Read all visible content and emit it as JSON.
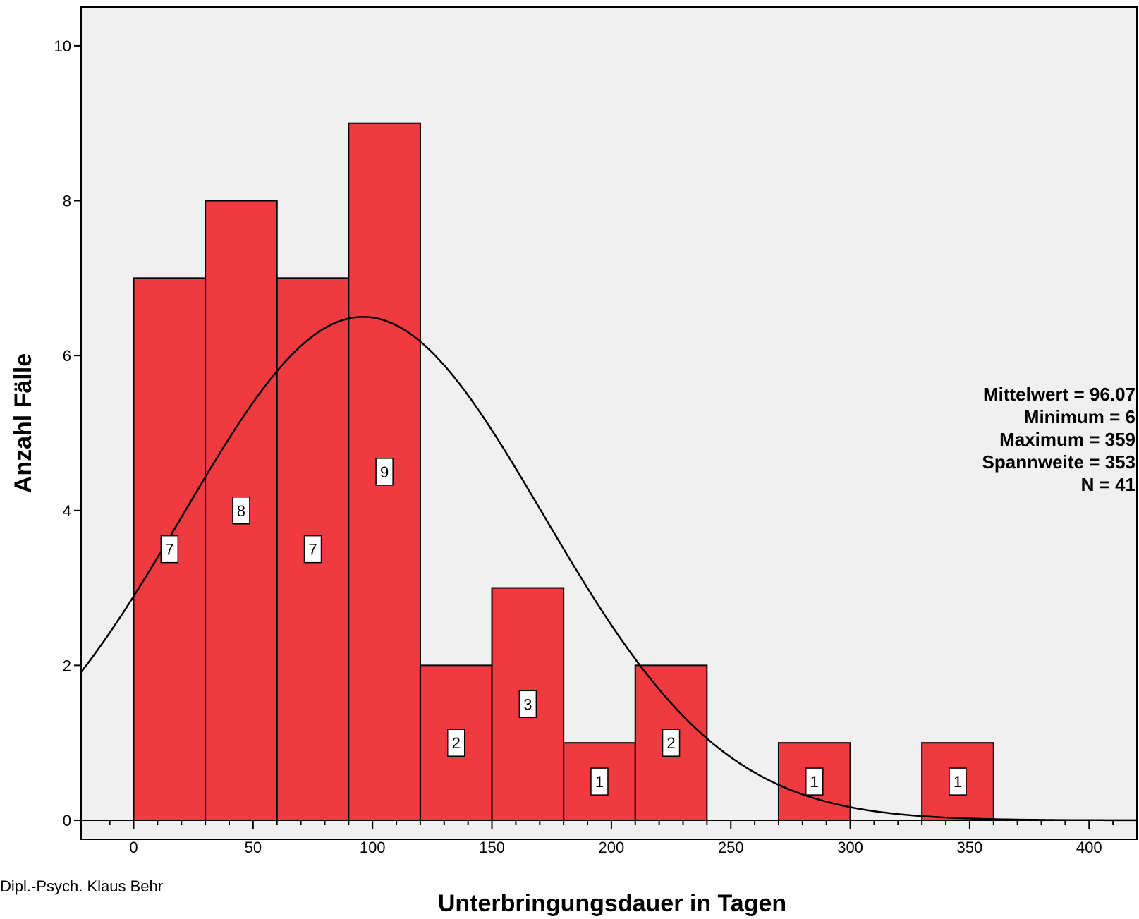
{
  "chart_data": {
    "type": "bar",
    "title": "",
    "xlabel": "Unterbringungsdauer in Tagen",
    "ylabel": "Anzahl Fälle",
    "xlim": [
      -22,
      420
    ],
    "ylim": [
      0,
      10.5
    ],
    "x_ticks": [
      0,
      50,
      100,
      150,
      200,
      250,
      300,
      350,
      400
    ],
    "x_tick_labels": [
      "0",
      "50",
      "100",
      "150",
      "200",
      "250",
      "300",
      "350",
      "400"
    ],
    "y_ticks": [
      0,
      2,
      4,
      6,
      8,
      10
    ],
    "y_tick_labels": [
      "0",
      "2",
      "4",
      "6",
      "8",
      "10"
    ],
    "bin_width": 30,
    "bins": [
      {
        "start": 0,
        "end": 30,
        "value": 7,
        "label": "7"
      },
      {
        "start": 30,
        "end": 60,
        "value": 8,
        "label": "8"
      },
      {
        "start": 60,
        "end": 90,
        "value": 7,
        "label": "7"
      },
      {
        "start": 90,
        "end": 120,
        "value": 9,
        "label": "9"
      },
      {
        "start": 120,
        "end": 150,
        "value": 2,
        "label": "2"
      },
      {
        "start": 150,
        "end": 180,
        "value": 3,
        "label": "3"
      },
      {
        "start": 180,
        "end": 210,
        "value": 1,
        "label": "1"
      },
      {
        "start": 210,
        "end": 240,
        "value": 2,
        "label": "2"
      },
      {
        "start": 270,
        "end": 300,
        "value": 1,
        "label": "1"
      },
      {
        "start": 330,
        "end": 360,
        "value": 1,
        "label": "1"
      }
    ],
    "normal_curve": {
      "mean": 96.07,
      "sd": 75.5,
      "n": 41
    },
    "stats": [
      "Mittelwert = 96.07",
      "Minimum = 6",
      "Maximum = 359",
      "Spannweite = 353",
      "N = 41"
    ],
    "colors": {
      "bar_fill": "#ef3a3f",
      "plot_background": "#f0f0f0",
      "outline": "#000000"
    },
    "grid": false
  },
  "footer": {
    "credit": "Dipl.-Psych. Klaus Behr"
  }
}
